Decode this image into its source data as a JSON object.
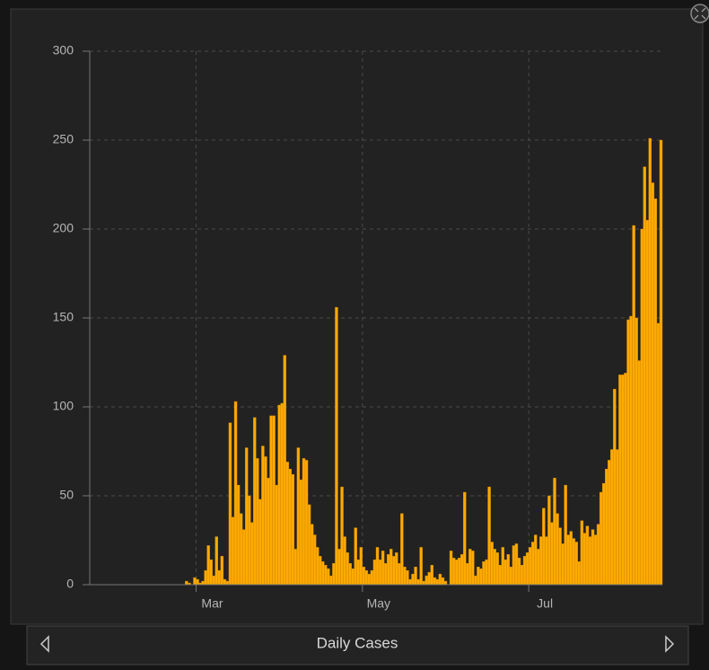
{
  "chart_data": {
    "type": "bar",
    "title": "Daily Cases",
    "color": "#ffaa00",
    "grid": true,
    "categories": [
      null,
      null,
      null,
      null,
      null,
      null,
      null,
      null,
      null,
      null,
      null,
      null,
      null,
      null,
      null,
      null,
      null,
      null,
      null,
      null,
      null,
      null,
      null,
      null,
      null,
      null,
      null,
      null,
      null,
      null,
      null,
      null,
      null,
      null,
      null,
      null,
      null,
      null,
      null,
      "Mar",
      null,
      null,
      null,
      null,
      null,
      null,
      null,
      null,
      null,
      null,
      null,
      null,
      null,
      null,
      null,
      null,
      null,
      null,
      null,
      null,
      null,
      null,
      null,
      null,
      null,
      null,
      null,
      null,
      null,
      null,
      null,
      null,
      null,
      null,
      null,
      null,
      null,
      null,
      null,
      null,
      null,
      null,
      null,
      null,
      null,
      null,
      null,
      null,
      null,
      null,
      null,
      null,
      null,
      null,
      null,
      null,
      null,
      null,
      null,
      null,
      "May",
      null,
      null,
      null,
      null,
      null,
      null,
      null,
      null,
      null,
      null,
      null,
      null,
      null,
      null,
      null,
      null,
      null,
      null,
      null,
      null,
      null,
      null,
      null,
      null,
      null,
      null,
      null,
      null,
      null,
      null,
      null,
      null,
      null,
      null,
      null,
      null,
      null,
      null,
      null,
      null,
      null,
      null,
      null,
      null,
      null,
      null,
      null,
      null,
      null,
      null,
      null,
      null,
      null,
      null,
      null,
      null,
      null,
      null,
      null,
      null,
      "Jul",
      null,
      null,
      null,
      null,
      null,
      null,
      null,
      null,
      null,
      null,
      null,
      null,
      null,
      null,
      null,
      null,
      null,
      null,
      null,
      null,
      null,
      null,
      null,
      null,
      null,
      null,
      null,
      null,
      null,
      null,
      null,
      null,
      null,
      null,
      null,
      null,
      null,
      null,
      null,
      null,
      null,
      null,
      null,
      null,
      null,
      null,
      null,
      null
    ],
    "values": [
      0,
      0,
      0,
      0,
      0,
      0,
      0,
      0,
      0,
      0,
      0,
      0,
      0,
      0,
      0,
      0,
      0,
      0,
      0,
      0,
      0,
      0,
      0,
      0,
      0,
      0,
      0,
      0,
      0,
      0,
      0,
      0,
      0,
      0,
      0,
      2,
      1,
      0,
      4,
      3,
      1,
      2,
      8,
      22,
      14,
      5,
      27,
      8,
      16,
      3,
      2,
      91,
      38,
      103,
      56,
      40,
      31,
      77,
      50,
      35,
      94,
      71,
      48,
      78,
      72,
      60,
      95,
      95,
      56,
      101,
      102,
      129,
      69,
      65,
      62,
      20,
      77,
      59,
      71,
      70,
      45,
      34,
      28,
      21,
      16,
      13,
      11,
      9,
      5,
      12,
      156,
      20,
      55,
      27,
      18,
      12,
      9,
      32,
      14,
      21,
      10,
      8,
      6,
      8,
      14,
      21,
      14,
      19,
      12,
      17,
      20,
      16,
      18,
      12,
      40,
      10,
      8,
      3,
      6,
      10,
      3,
      21,
      2,
      5,
      7,
      11,
      4,
      3,
      6,
      4,
      2,
      0,
      19,
      15,
      14,
      15,
      17,
      52,
      12,
      20,
      19,
      5,
      10,
      9,
      13,
      14,
      55,
      24,
      20,
      18,
      11,
      21,
      14,
      17,
      10,
      22,
      23,
      15,
      11,
      16,
      18,
      21,
      24,
      28,
      20,
      27,
      43,
      27,
      50,
      35,
      60,
      40,
      32,
      23,
      56,
      28,
      30,
      26,
      24,
      13,
      36,
      29,
      33,
      27,
      31,
      28,
      34,
      52,
      57,
      65,
      70,
      76,
      110,
      76,
      118,
      118,
      119,
      149,
      151,
      202,
      150,
      126,
      200,
      235,
      205,
      251,
      226,
      217,
      147,
      250
    ],
    "ylim": [
      0,
      300
    ],
    "yticks": [
      0,
      50,
      100,
      150,
      200,
      250,
      300
    ]
  }
}
